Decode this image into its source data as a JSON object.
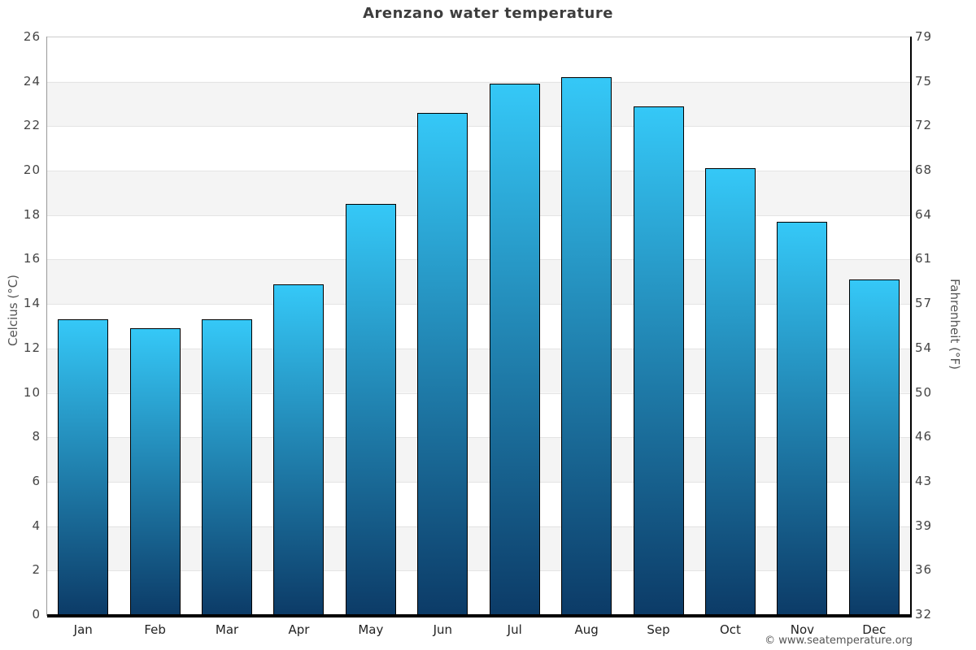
{
  "page": {
    "title": "Arenzano water temperature",
    "footer": "© www.seatemperature.org"
  },
  "chart_data": {
    "type": "bar",
    "title": "Arenzano water temperature",
    "categories": [
      "Jan",
      "Feb",
      "Mar",
      "Apr",
      "May",
      "Jun",
      "Jul",
      "Aug",
      "Sep",
      "Oct",
      "Nov",
      "Dec"
    ],
    "values": [
      13.3,
      12.9,
      13.3,
      14.9,
      18.5,
      22.6,
      23.9,
      24.2,
      22.9,
      20.1,
      17.7,
      15.1
    ],
    "unit": "°C",
    "ylabel_left": "Celcius (°C)",
    "ylabel_right": "Fahrenheit (°F)",
    "ylim": [
      0,
      26
    ],
    "yticks_celsius": [
      0,
      2,
      4,
      6,
      8,
      10,
      12,
      14,
      16,
      18,
      20,
      22,
      24,
      26
    ],
    "yticks_fahrenheit": [
      "32",
      "36",
      "39",
      "43",
      "46",
      "50",
      "54",
      "57",
      "61",
      "64",
      "68",
      "72",
      "75",
      "79"
    ],
    "grid": "horizontal-bands-alternating",
    "legend": "none",
    "footer": "© www.seatemperature.org",
    "colors": {
      "background": "#ffffff",
      "band_gray": "#f4f4f4",
      "gridline": "#e4e4e4",
      "plot_top_border": "#cccccc",
      "bar_gradient_top": "#35c8f7",
      "bar_gradient_bottom": "#0c3b67",
      "bar_border": "#000000",
      "left_axis_line": "#999999",
      "right_axis_line": "#000000",
      "bottom_axis_line": "#000000",
      "title_text": "#3d3d3d",
      "tick_text": "#444444",
      "month_text": "#222222",
      "axis_title_text": "#555555",
      "footer_text": "#555555"
    }
  }
}
